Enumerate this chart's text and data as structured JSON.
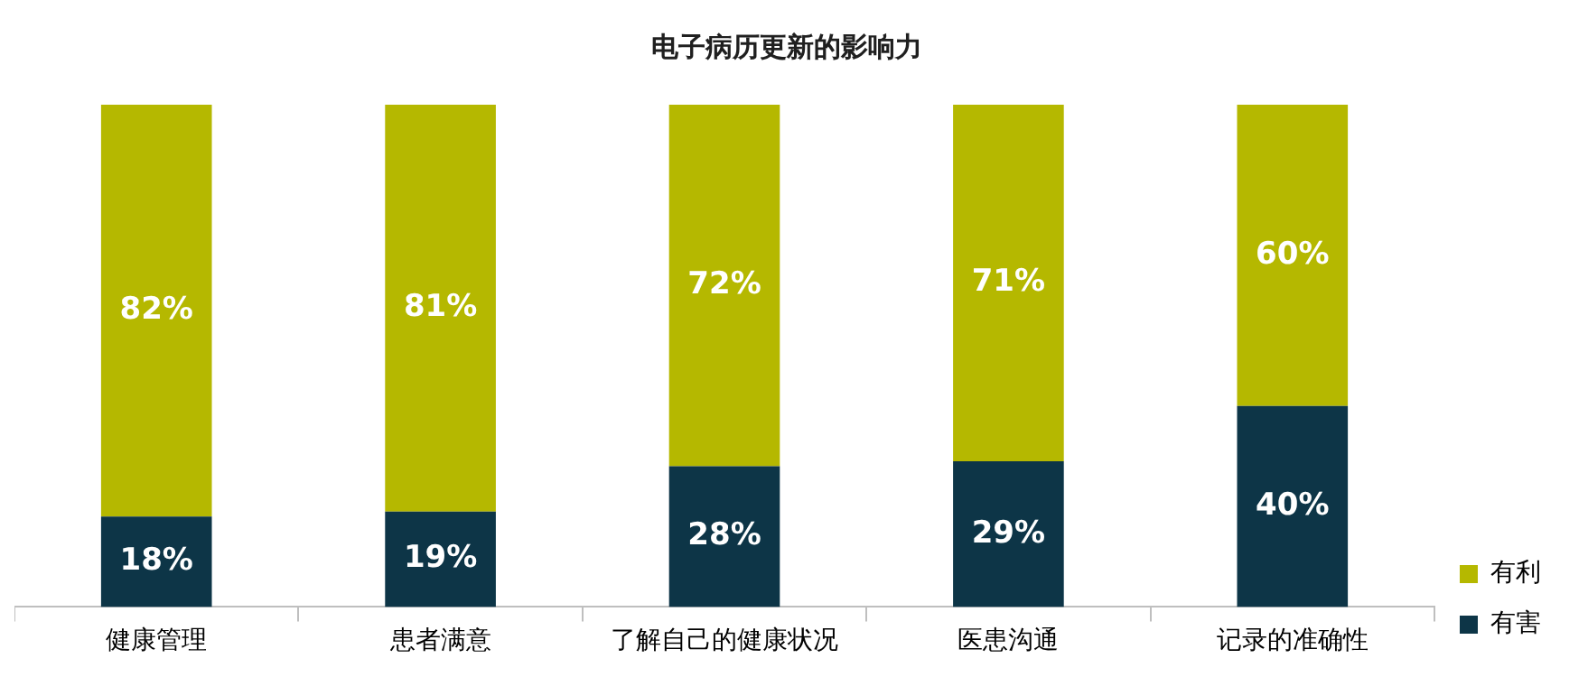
{
  "chart_data": {
    "type": "bar",
    "title": "电子病历更新的影响力",
    "categories": [
      "健康管理",
      "患者满意",
      "了解自己的健康状况",
      "医患沟通",
      "记录的准确性"
    ],
    "stacked": true,
    "tick_labels": "x",
    "grid": false,
    "legend": "bottom right",
    "series": [
      {
        "name": "有害",
        "color": "#0d3547",
        "values": [
          18,
          19,
          28,
          29,
          40
        ],
        "value_labels": [
          "18%",
          "19%",
          "28%",
          "29%",
          "40%"
        ]
      },
      {
        "name": "有利",
        "color": "#b5b800",
        "values": [
          82,
          81,
          72,
          71,
          60
        ],
        "value_labels": [
          "82%",
          "81%",
          "72%",
          "71%",
          "60%"
        ]
      }
    ]
  }
}
